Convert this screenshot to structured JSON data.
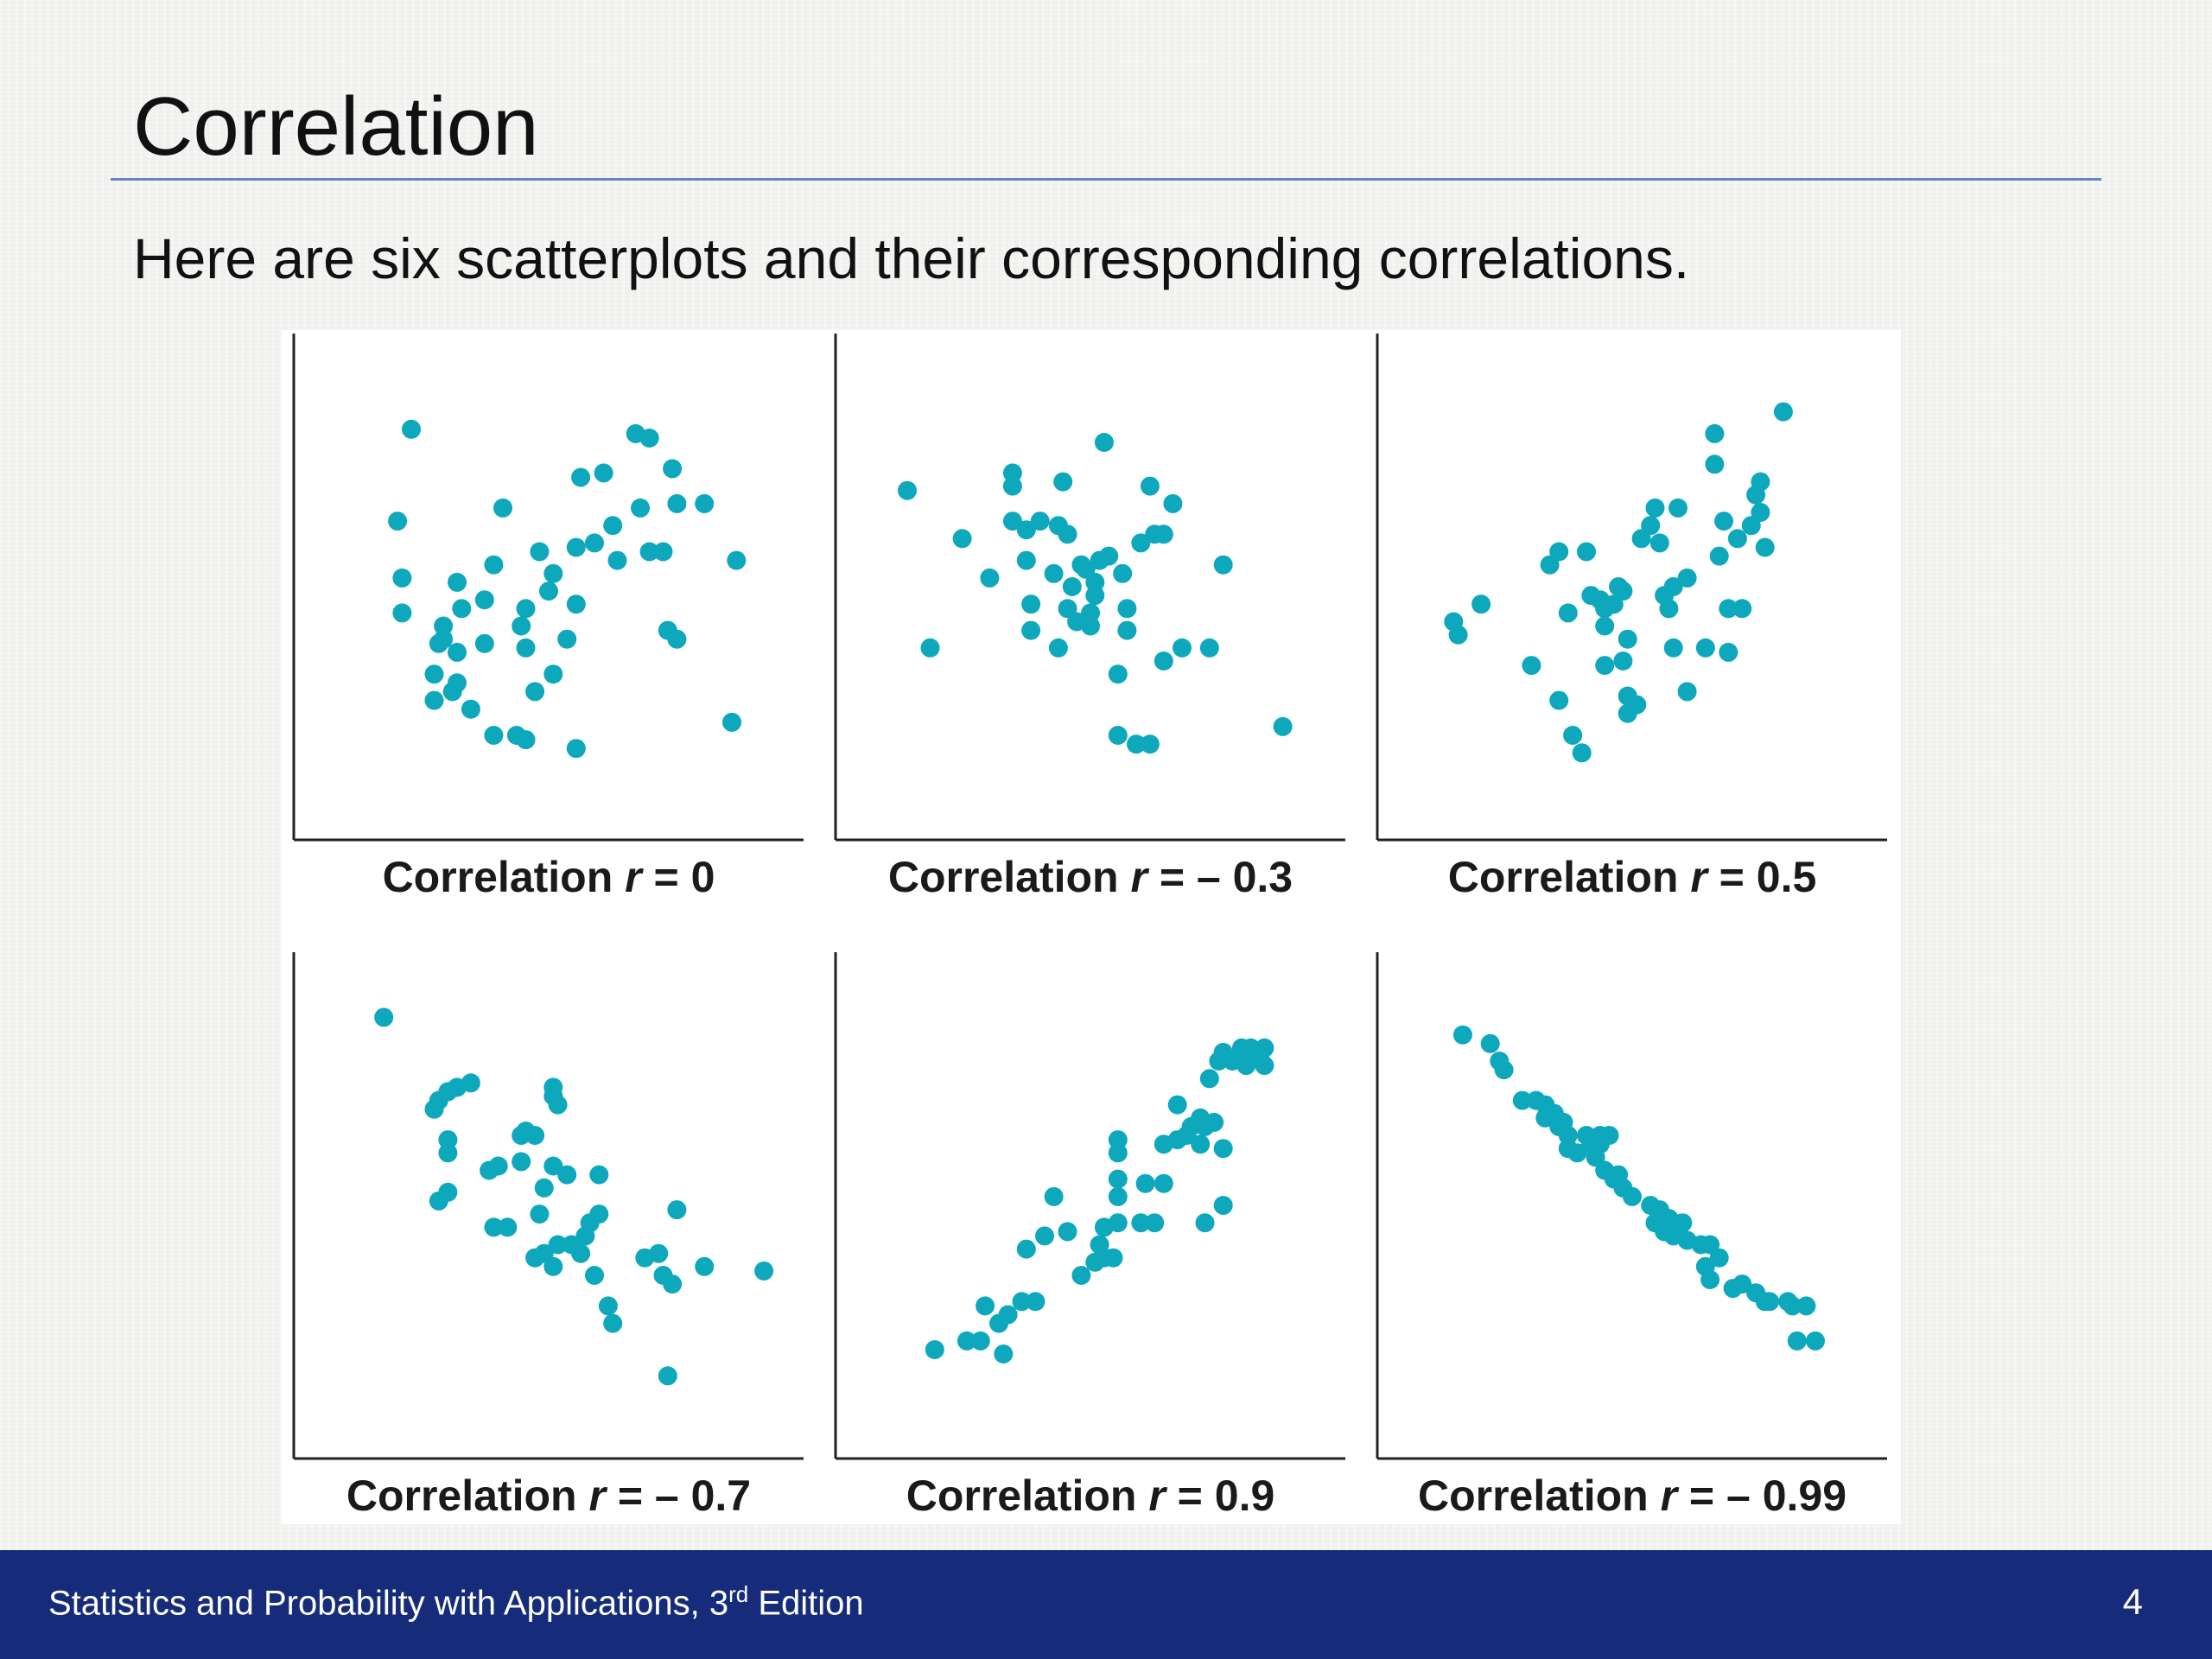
{
  "slide": {
    "title": "Correlation",
    "subtitle": "Here are six scatterplots and their corresponding correlations."
  },
  "footer": {
    "text_before_sup": "Statistics and Probability with Applications, 3",
    "sup": "rd",
    "text_after_sup": " Edition",
    "page_number": "4"
  },
  "colors": {
    "point": "#0ea8bd",
    "title_rule": "#5f85c6",
    "footer_bar": "#162c7a"
  },
  "chart_data": [
    {
      "type": "scatter",
      "caption_prefix": "Correlation ",
      "caption_var": "r",
      "caption_suffix": " = 0",
      "points": [
        [
          1.7,
          6.5
        ],
        [
          2.0,
          8.6
        ],
        [
          1.8,
          5.2
        ],
        [
          1.8,
          4.4
        ],
        [
          4.0,
          6.8
        ],
        [
          3.8,
          5.5
        ],
        [
          3.6,
          4.7
        ],
        [
          3.6,
          3.7
        ],
        [
          3.0,
          3.5
        ],
        [
          3.0,
          2.8
        ],
        [
          3.3,
          2.2
        ],
        [
          3.1,
          4.5
        ],
        [
          3.0,
          5.1
        ],
        [
          2.7,
          4.1
        ],
        [
          2.6,
          3.7
        ],
        [
          2.5,
          3.0
        ],
        [
          2.5,
          2.4
        ],
        [
          2.7,
          3.8
        ],
        [
          2.9,
          2.6
        ],
        [
          3.8,
          1.6
        ],
        [
          4.3,
          1.6
        ],
        [
          4.5,
          1.5
        ],
        [
          4.7,
          2.6
        ],
        [
          5.6,
          1.3
        ],
        [
          5.1,
          3.0
        ],
        [
          5.4,
          3.8
        ],
        [
          5.6,
          4.6
        ],
        [
          5.0,
          4.9
        ],
        [
          5.1,
          5.3
        ],
        [
          4.5,
          4.5
        ],
        [
          4.4,
          4.1
        ],
        [
          4.5,
          3.6
        ],
        [
          4.8,
          5.8
        ],
        [
          5.6,
          5.9
        ],
        [
          6.0,
          6.0
        ],
        [
          6.4,
          6.4
        ],
        [
          7.0,
          6.8
        ],
        [
          6.9,
          8.5
        ],
        [
          7.2,
          8.4
        ],
        [
          7.7,
          7.7
        ],
        [
          7.8,
          6.9
        ],
        [
          8.4,
          6.9
        ],
        [
          7.5,
          5.8
        ],
        [
          7.2,
          5.8
        ],
        [
          7.6,
          4.0
        ],
        [
          7.8,
          3.8
        ],
        [
          9.1,
          5.6
        ],
        [
          9.0,
          1.9
        ],
        [
          5.7,
          7.5
        ],
        [
          6.2,
          7.6
        ],
        [
          6.5,
          5.6
        ]
      ],
      "xlim": [
        0,
        10
      ],
      "ylim": [
        0,
        10
      ]
    },
    {
      "type": "scatter",
      "caption_prefix": "Correlation ",
      "caption_var": "r",
      "caption_suffix": " = – 0.3",
      "points": [
        [
          1.0,
          7.2
        ],
        [
          1.5,
          3.6
        ],
        [
          2.2,
          6.1
        ],
        [
          2.8,
          5.2
        ],
        [
          3.3,
          7.3
        ],
        [
          3.3,
          7.6
        ],
        [
          3.3,
          6.5
        ],
        [
          3.6,
          6.3
        ],
        [
          3.9,
          6.5
        ],
        [
          3.6,
          5.6
        ],
        [
          3.7,
          4.6
        ],
        [
          3.7,
          4.0
        ],
        [
          4.2,
          5.3
        ],
        [
          4.3,
          6.4
        ],
        [
          4.5,
          6.2
        ],
        [
          4.4,
          7.4
        ],
        [
          4.6,
          5.0
        ],
        [
          4.5,
          4.5
        ],
        [
          4.3,
          3.6
        ],
        [
          4.7,
          4.2
        ],
        [
          4.8,
          5.5
        ],
        [
          4.9,
          5.4
        ],
        [
          5.1,
          5.1
        ],
        [
          5.1,
          4.8
        ],
        [
          5.0,
          4.4
        ],
        [
          5.2,
          5.6
        ],
        [
          5.0,
          4.1
        ],
        [
          5.4,
          5.7
        ],
        [
          5.7,
          5.3
        ],
        [
          5.3,
          8.3
        ],
        [
          5.8,
          4.5
        ],
        [
          5.8,
          4.0
        ],
        [
          5.6,
          3.0
        ],
        [
          5.6,
          1.6
        ],
        [
          6.0,
          1.4
        ],
        [
          6.3,
          1.4
        ],
        [
          6.1,
          6.0
        ],
        [
          6.4,
          6.2
        ],
        [
          6.6,
          6.2
        ],
        [
          6.3,
          7.3
        ],
        [
          6.8,
          6.9
        ],
        [
          6.6,
          3.3
        ],
        [
          7.0,
          3.6
        ],
        [
          7.6,
          3.6
        ],
        [
          7.9,
          5.5
        ],
        [
          9.2,
          1.8
        ]
      ],
      "xlim": [
        0,
        10
      ],
      "ylim": [
        0,
        10
      ]
    },
    {
      "type": "scatter",
      "caption_prefix": "Correlation ",
      "caption_var": "r",
      "caption_suffix": " = 0.5",
      "points": [
        [
          1.1,
          4.2
        ],
        [
          1.2,
          3.9
        ],
        [
          1.7,
          4.6
        ],
        [
          2.8,
          3.2
        ],
        [
          3.2,
          5.5
        ],
        [
          3.4,
          5.8
        ],
        [
          3.6,
          4.4
        ],
        [
          3.4,
          2.4
        ],
        [
          3.7,
          1.6
        ],
        [
          3.9,
          1.2
        ],
        [
          4.0,
          5.8
        ],
        [
          4.1,
          4.8
        ],
        [
          4.3,
          4.7
        ],
        [
          4.4,
          4.5
        ],
        [
          4.4,
          4.1
        ],
        [
          4.4,
          3.2
        ],
        [
          4.6,
          4.6
        ],
        [
          4.7,
          5.0
        ],
        [
          4.8,
          4.9
        ],
        [
          4.8,
          3.3
        ],
        [
          4.9,
          3.8
        ],
        [
          4.9,
          2.5
        ],
        [
          4.9,
          2.1
        ],
        [
          5.1,
          2.3
        ],
        [
          5.2,
          6.1
        ],
        [
          5.4,
          6.4
        ],
        [
          5.5,
          6.8
        ],
        [
          5.6,
          6.0
        ],
        [
          5.7,
          4.8
        ],
        [
          5.9,
          5.0
        ],
        [
          5.8,
          4.5
        ],
        [
          5.9,
          3.6
        ],
        [
          6.0,
          6.8
        ],
        [
          6.2,
          5.2
        ],
        [
          6.2,
          2.6
        ],
        [
          6.6,
          3.6
        ],
        [
          6.8,
          7.8
        ],
        [
          6.8,
          8.5
        ],
        [
          7.0,
          6.5
        ],
        [
          6.9,
          5.7
        ],
        [
          7.1,
          4.5
        ],
        [
          7.1,
          3.5
        ],
        [
          7.4,
          4.5
        ],
        [
          7.3,
          6.1
        ],
        [
          7.6,
          6.4
        ],
        [
          7.7,
          7.1
        ],
        [
          7.8,
          7.4
        ],
        [
          7.8,
          6.7
        ],
        [
          7.9,
          5.9
        ],
        [
          8.3,
          9.0
        ]
      ],
      "xlim": [
        0,
        10
      ],
      "ylim": [
        0,
        10
      ]
    },
    {
      "type": "scatter",
      "caption_prefix": "Correlation ",
      "caption_var": "r",
      "caption_suffix": " = – 0.7",
      "points": [
        [
          1.4,
          9.3
        ],
        [
          2.5,
          7.2
        ],
        [
          2.6,
          7.4
        ],
        [
          2.8,
          7.6
        ],
        [
          3.0,
          7.7
        ],
        [
          3.3,
          7.8
        ],
        [
          2.8,
          6.2
        ],
        [
          2.8,
          6.5
        ],
        [
          2.6,
          5.1
        ],
        [
          2.8,
          5.3
        ],
        [
          3.7,
          5.8
        ],
        [
          3.9,
          5.9
        ],
        [
          3.8,
          4.5
        ],
        [
          4.1,
          4.5
        ],
        [
          4.4,
          6.6
        ],
        [
          4.5,
          6.7
        ],
        [
          4.4,
          6.0
        ],
        [
          4.7,
          6.6
        ],
        [
          5.1,
          7.7
        ],
        [
          5.1,
          7.5
        ],
        [
          5.2,
          7.3
        ],
        [
          5.1,
          5.9
        ],
        [
          5.4,
          5.7
        ],
        [
          4.9,
          5.4
        ],
        [
          4.8,
          4.8
        ],
        [
          4.7,
          3.8
        ],
        [
          4.9,
          3.9
        ],
        [
          5.1,
          3.6
        ],
        [
          5.2,
          4.1
        ],
        [
          5.5,
          4.1
        ],
        [
          5.8,
          4.3
        ],
        [
          5.7,
          3.9
        ],
        [
          5.9,
          4.6
        ],
        [
          6.1,
          4.8
        ],
        [
          6.1,
          5.7
        ],
        [
          6.0,
          3.4
        ],
        [
          6.3,
          2.7
        ],
        [
          6.4,
          2.3
        ],
        [
          7.1,
          3.8
        ],
        [
          7.4,
          3.9
        ],
        [
          7.5,
          3.4
        ],
        [
          7.7,
          3.2
        ],
        [
          7.8,
          4.9
        ],
        [
          8.4,
          3.6
        ],
        [
          9.7,
          3.5
        ],
        [
          7.6,
          1.1
        ]
      ],
      "xlim": [
        0,
        10
      ],
      "ylim": [
        0,
        10
      ]
    },
    {
      "type": "scatter",
      "caption_prefix": "Correlation ",
      "caption_var": "r",
      "caption_suffix": " = 0.9",
      "points": [
        [
          1.6,
          1.7
        ],
        [
          2.3,
          1.9
        ],
        [
          2.6,
          1.9
        ],
        [
          2.7,
          2.7
        ],
        [
          3.0,
          2.3
        ],
        [
          3.1,
          1.6
        ],
        [
          3.2,
          2.5
        ],
        [
          3.5,
          2.8
        ],
        [
          3.8,
          2.8
        ],
        [
          3.6,
          4.0
        ],
        [
          4.0,
          4.3
        ],
        [
          4.5,
          4.4
        ],
        [
          4.2,
          5.2
        ],
        [
          4.8,
          3.4
        ],
        [
          5.1,
          3.7
        ],
        [
          5.3,
          3.8
        ],
        [
          5.5,
          3.8
        ],
        [
          5.2,
          4.1
        ],
        [
          5.3,
          4.5
        ],
        [
          5.6,
          4.6
        ],
        [
          5.6,
          5.2
        ],
        [
          5.6,
          5.6
        ],
        [
          5.6,
          6.2
        ],
        [
          5.6,
          6.5
        ],
        [
          6.1,
          4.6
        ],
        [
          6.4,
          4.6
        ],
        [
          6.2,
          5.5
        ],
        [
          6.6,
          5.5
        ],
        [
          6.6,
          6.4
        ],
        [
          6.9,
          6.5
        ],
        [
          6.9,
          7.3
        ],
        [
          7.1,
          6.6
        ],
        [
          7.2,
          6.8
        ],
        [
          7.4,
          6.4
        ],
        [
          7.5,
          6.8
        ],
        [
          7.5,
          4.6
        ],
        [
          7.4,
          7.0
        ],
        [
          7.7,
          6.9
        ],
        [
          7.9,
          6.3
        ],
        [
          7.9,
          5.0
        ],
        [
          7.6,
          7.9
        ],
        [
          7.8,
          8.3
        ],
        [
          7.9,
          8.5
        ],
        [
          8.1,
          8.3
        ],
        [
          8.3,
          8.6
        ],
        [
          8.4,
          8.2
        ],
        [
          8.5,
          8.6
        ],
        [
          8.7,
          8.4
        ],
        [
          8.8,
          8.6
        ],
        [
          8.8,
          8.2
        ]
      ],
      "xlim": [
        0,
        10
      ],
      "ylim": [
        0,
        10
      ]
    },
    {
      "type": "scatter",
      "caption_prefix": "Correlation ",
      "caption_var": "r",
      "caption_suffix": " = – 0.99",
      "points": [
        [
          1.3,
          8.9
        ],
        [
          1.9,
          8.7
        ],
        [
          2.1,
          8.3
        ],
        [
          2.2,
          8.1
        ],
        [
          2.6,
          7.4
        ],
        [
          2.9,
          7.4
        ],
        [
          3.1,
          7.3
        ],
        [
          3.1,
          7.0
        ],
        [
          3.3,
          7.1
        ],
        [
          3.4,
          6.8
        ],
        [
          3.5,
          6.9
        ],
        [
          3.6,
          6.6
        ],
        [
          3.6,
          6.3
        ],
        [
          3.8,
          6.2
        ],
        [
          4.0,
          6.6
        ],
        [
          4.1,
          6.4
        ],
        [
          4.3,
          6.4
        ],
        [
          4.2,
          6.1
        ],
        [
          4.3,
          6.6
        ],
        [
          4.5,
          6.6
        ],
        [
          4.4,
          5.8
        ],
        [
          4.6,
          5.6
        ],
        [
          4.8,
          5.4
        ],
        [
          4.7,
          5.7
        ],
        [
          5.0,
          5.2
        ],
        [
          5.4,
          5.0
        ],
        [
          5.5,
          4.6
        ],
        [
          5.6,
          4.9
        ],
        [
          5.7,
          4.4
        ],
        [
          5.9,
          4.3
        ],
        [
          5.8,
          4.7
        ],
        [
          6.1,
          4.6
        ],
        [
          6.2,
          4.2
        ],
        [
          6.5,
          4.1
        ],
        [
          6.6,
          3.6
        ],
        [
          6.7,
          4.1
        ],
        [
          6.7,
          3.3
        ],
        [
          6.9,
          3.8
        ],
        [
          7.2,
          3.1
        ],
        [
          7.4,
          3.2
        ],
        [
          7.7,
          3.0
        ],
        [
          7.9,
          2.8
        ],
        [
          8.0,
          2.8
        ],
        [
          8.4,
          2.8
        ],
        [
          8.5,
          2.7
        ],
        [
          8.8,
          2.7
        ],
        [
          8.6,
          1.9
        ],
        [
          9.0,
          1.9
        ]
      ],
      "xlim": [
        0,
        10
      ],
      "ylim": [
        0,
        10
      ]
    }
  ]
}
